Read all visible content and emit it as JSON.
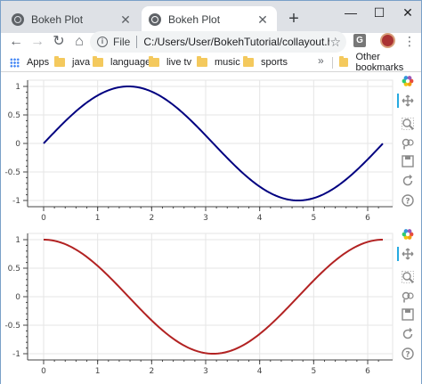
{
  "browser": {
    "tabs": [
      {
        "title": "Bokeh Plot",
        "active": false
      },
      {
        "title": "Bokeh Plot",
        "active": true
      }
    ],
    "new_tab_label": "+",
    "window_controls": {
      "minimize": "—",
      "maximize": "☐",
      "close": "✕"
    },
    "toolbar": {
      "back": "←",
      "forward": "→",
      "reload": "↻",
      "home": "⌂",
      "scheme": "File",
      "url": "C:/Users/User/BokehTutorial/collayout.html",
      "star": "☆",
      "extension": "G",
      "menu": "⋮"
    },
    "bookmarks": {
      "items": [
        {
          "label": "Apps",
          "icon": "apps-grid-icon"
        },
        {
          "label": "java",
          "icon": "folder-icon"
        },
        {
          "label": "language",
          "icon": "folder-icon"
        },
        {
          "label": "live tv",
          "icon": "folder-icon"
        },
        {
          "label": "music",
          "icon": "folder-icon"
        },
        {
          "label": "sports",
          "icon": "folder-icon"
        }
      ],
      "more": "»",
      "other": "Other bookmarks"
    }
  },
  "bokeh_toolbar": {
    "tools": [
      "bokeh-logo-icon",
      "pan-icon",
      "box-zoom-icon",
      "wheel-zoom-icon",
      "save-icon",
      "reset-icon",
      "help-icon"
    ]
  },
  "chart_data": [
    {
      "type": "line",
      "function": "sin(x)",
      "x_range": [
        0,
        6.28
      ],
      "ylim": [
        -1,
        1
      ],
      "x_ticks": [
        "0",
        "1",
        "2",
        "3",
        "4",
        "5",
        "6"
      ],
      "y_ticks": [
        "1",
        "0.5",
        "0",
        "-0.5",
        "-1"
      ],
      "x": [
        0,
        0.5,
        1,
        1.5708,
        2,
        2.5,
        3,
        3.1416,
        3.5,
        4,
        4.5,
        4.7124,
        5,
        5.5,
        6,
        6.28
      ],
      "y": [
        0,
        0.479,
        0.841,
        1,
        0.909,
        0.598,
        0.141,
        0,
        -0.351,
        -0.757,
        -0.978,
        -1,
        -0.959,
        -0.706,
        -0.279,
        -0.003
      ],
      "color": "#000080",
      "grid": true,
      "xlabel": "",
      "ylabel": ""
    },
    {
      "type": "line",
      "function": "cos(x)",
      "x_range": [
        0,
        6.28
      ],
      "ylim": [
        -1,
        1
      ],
      "x_ticks": [
        "0",
        "1",
        "2",
        "3",
        "4",
        "5",
        "6"
      ],
      "y_ticks": [
        "1",
        "0.5",
        "0",
        "-0.5",
        "-1"
      ],
      "x": [
        0,
        0.5,
        1,
        1.5708,
        2,
        2.5,
        3,
        3.1416,
        3.5,
        4,
        4.5,
        4.7124,
        5,
        5.5,
        6,
        6.28
      ],
      "y": [
        1,
        0.878,
        0.54,
        0,
        -0.416,
        -0.801,
        -0.99,
        -1,
        -0.936,
        -0.654,
        -0.211,
        0,
        0.284,
        0.709,
        0.96,
        1
      ],
      "color": "#b22222",
      "grid": true,
      "xlabel": "",
      "ylabel": ""
    }
  ]
}
